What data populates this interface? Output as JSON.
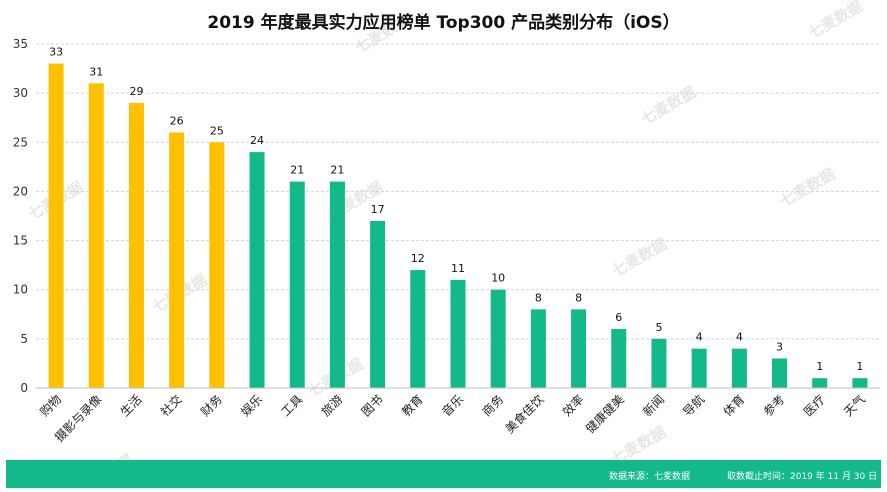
{
  "chart_data": {
    "type": "bar",
    "title": "2019 年度最具实力应用榜单 Top300 产品类别分布（iOS）",
    "xlabel": "",
    "ylabel": "",
    "ylim": [
      0,
      35
    ],
    "yticks": [
      0,
      5,
      10,
      15,
      20,
      25,
      30,
      35
    ],
    "grid": true,
    "categories": [
      "购物",
      "摄影与录像",
      "生活",
      "社交",
      "财务",
      "娱乐",
      "工具",
      "旅游",
      "图书",
      "教育",
      "音乐",
      "商务",
      "美食佳饮",
      "效率",
      "健康健美",
      "新闻",
      "导航",
      "体育",
      "参考",
      "医疗",
      "天气"
    ],
    "values": [
      33,
      31,
      29,
      26,
      25,
      24,
      21,
      21,
      17,
      12,
      11,
      10,
      8,
      8,
      6,
      5,
      4,
      4,
      3,
      1,
      1
    ],
    "highlight_count": 5,
    "colors": {
      "highlight": "#ffc000",
      "normal": "#13b989"
    }
  },
  "watermark": "七麦数据",
  "footer": {
    "source": "数据来源：七麦数据",
    "date": "取数截止时间：2019 年 11 月 30 日"
  }
}
